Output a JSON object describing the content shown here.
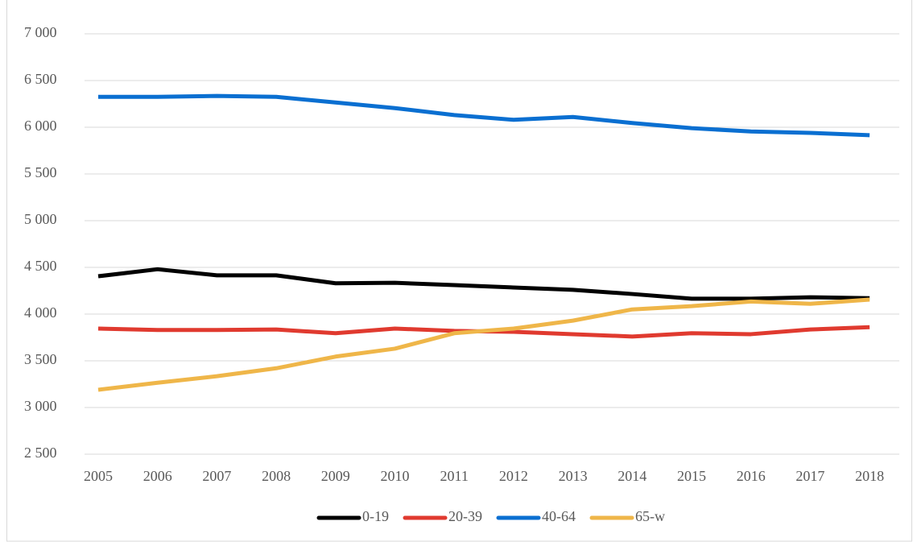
{
  "chart_data": {
    "type": "line",
    "categories": [
      "2005",
      "2006",
      "2007",
      "2008",
      "2009",
      "2010",
      "2011",
      "2012",
      "2013",
      "2014",
      "2015",
      "2016",
      "2017",
      "2018"
    ],
    "series": [
      {
        "name": "0-19",
        "color": "#000000",
        "values": [
          4405,
          4480,
          4415,
          4415,
          4330,
          4335,
          4310,
          4285,
          4260,
          4215,
          4165,
          4165,
          4180,
          4170
        ]
      },
      {
        "name": "20-39",
        "color": "#e03a2f",
        "values": [
          3845,
          3830,
          3830,
          3835,
          3795,
          3845,
          3820,
          3810,
          3785,
          3760,
          3795,
          3785,
          3835,
          3860
        ]
      },
      {
        "name": "40-64",
        "color": "#0a6fd1",
        "values": [
          6325,
          6325,
          6335,
          6325,
          6265,
          6205,
          6130,
          6080,
          6110,
          6045,
          5990,
          5955,
          5940,
          5915
        ]
      },
      {
        "name": "65-w",
        "color": "#efb649",
        "values": [
          3190,
          3265,
          3335,
          3420,
          3545,
          3630,
          3795,
          3845,
          3930,
          4050,
          4085,
          4135,
          4110,
          4155
        ]
      }
    ],
    "ylim": [
      2500,
      7000
    ],
    "yticks": [
      {
        "value": 2500,
        "label": "2 500"
      },
      {
        "value": 3000,
        "label": "3 000"
      },
      {
        "value": 3500,
        "label": "3 500"
      },
      {
        "value": 4000,
        "label": "4 000"
      },
      {
        "value": 4500,
        "label": "4 500"
      },
      {
        "value": 5000,
        "label": "5 000"
      },
      {
        "value": 5500,
        "label": "5 500"
      },
      {
        "value": 6000,
        "label": "6 000"
      },
      {
        "value": 6500,
        "label": "6 500"
      },
      {
        "value": 7000,
        "label": "7 000"
      }
    ],
    "grid": true,
    "legend": "bottom"
  }
}
